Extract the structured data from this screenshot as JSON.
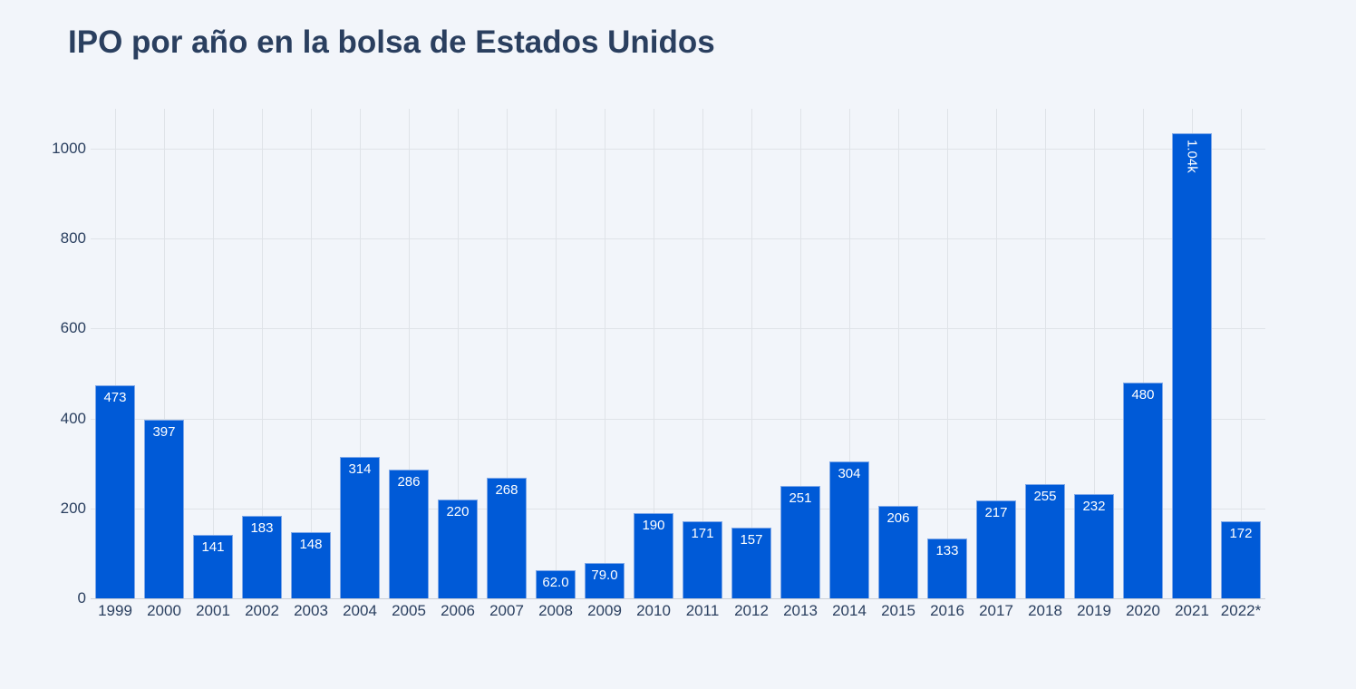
{
  "title": "IPO por año en la bolsa de Estados Unidos",
  "colors": {
    "background": "#f2f5fa",
    "bar": "#005ad7",
    "bar_text": "#ffffff",
    "axis_text": "#2a3f5f",
    "grid": "#dfe3e8"
  },
  "chart_data": {
    "type": "bar",
    "title": "IPO por año en la bolsa de Estados Unidos",
    "xlabel": "",
    "ylabel": "",
    "categories": [
      "1999",
      "2000",
      "2001",
      "2002",
      "2003",
      "2004",
      "2005",
      "2006",
      "2007",
      "2008",
      "2009",
      "2010",
      "2011",
      "2012",
      "2013",
      "2014",
      "2015",
      "2016",
      "2017",
      "2018",
      "2019",
      "2020",
      "2021",
      "2022*"
    ],
    "values": [
      473,
      397,
      141,
      183,
      148,
      314,
      286,
      220,
      268,
      62,
      79,
      190,
      171,
      157,
      251,
      304,
      206,
      133,
      217,
      255,
      232,
      480,
      1035,
      172
    ],
    "value_labels": [
      "473",
      "397",
      "141",
      "183",
      "148",
      "314",
      "286",
      "220",
      "268",
      "62.0",
      "79.0",
      "190",
      "171",
      "157",
      "251",
      "304",
      "206",
      "133",
      "217",
      "255",
      "232",
      "480",
      "1.04k",
      "172"
    ],
    "yticks": [
      0,
      200,
      400,
      600,
      800,
      1000
    ],
    "ytick_labels": [
      "0",
      "200",
      "400",
      "600",
      "800",
      "1000"
    ],
    "ylim": [
      0,
      1089
    ],
    "grid": true,
    "legend": null
  }
}
